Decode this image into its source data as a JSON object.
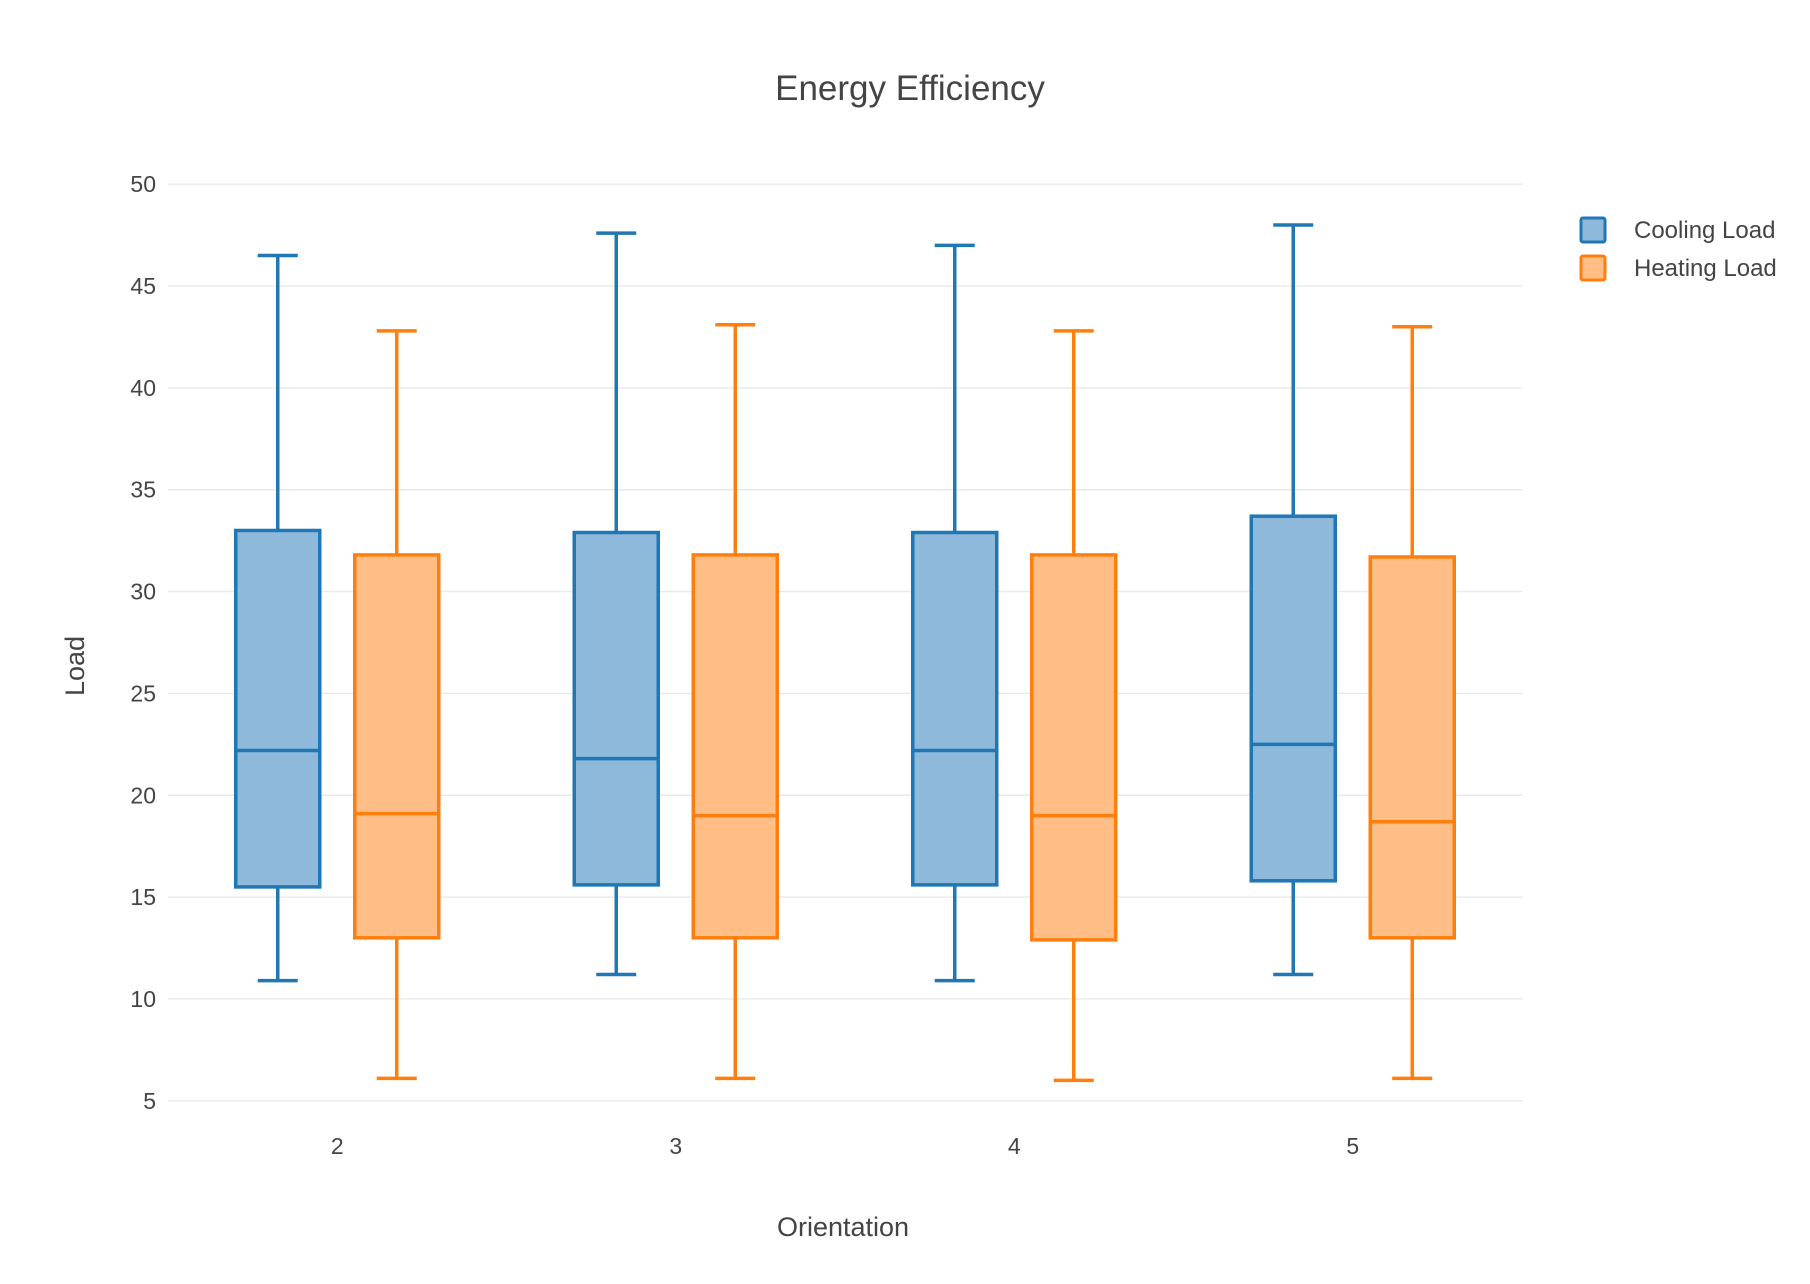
{
  "chart_data": {
    "type": "box",
    "title": "Energy Efficiency",
    "xlabel": "Orientation",
    "ylabel": "Load",
    "categories": [
      "2",
      "3",
      "4",
      "5"
    ],
    "ylim": [
      4.4,
      50.6
    ],
    "yticks": [
      5,
      10,
      15,
      20,
      25,
      30,
      35,
      40,
      45,
      50
    ],
    "grid": true,
    "legend_position": "top-right",
    "series": [
      {
        "name": "Cooling Load",
        "color": "#1f77b4",
        "fill": "#8fb9db",
        "boxes": [
          {
            "min": 10.9,
            "q1": 15.5,
            "median": 22.2,
            "q3": 33.0,
            "max": 46.5
          },
          {
            "min": 11.2,
            "q1": 15.6,
            "median": 21.8,
            "q3": 32.9,
            "max": 47.6
          },
          {
            "min": 10.9,
            "q1": 15.6,
            "median": 22.2,
            "q3": 32.9,
            "max": 47.0
          },
          {
            "min": 11.2,
            "q1": 15.8,
            "median": 22.5,
            "q3": 33.7,
            "max": 48.0
          }
        ]
      },
      {
        "name": "Heating Load",
        "color": "#ff7f0e",
        "fill": "#ffbe86",
        "boxes": [
          {
            "min": 6.1,
            "q1": 13.0,
            "median": 19.1,
            "q3": 31.8,
            "max": 42.8
          },
          {
            "min": 6.1,
            "q1": 13.0,
            "median": 19.0,
            "q3": 31.8,
            "max": 43.1
          },
          {
            "min": 6.0,
            "q1": 12.9,
            "median": 19.0,
            "q3": 31.8,
            "max": 42.8
          },
          {
            "min": 6.1,
            "q1": 13.0,
            "median": 18.7,
            "q3": 31.7,
            "max": 43.0
          }
        ]
      }
    ]
  }
}
